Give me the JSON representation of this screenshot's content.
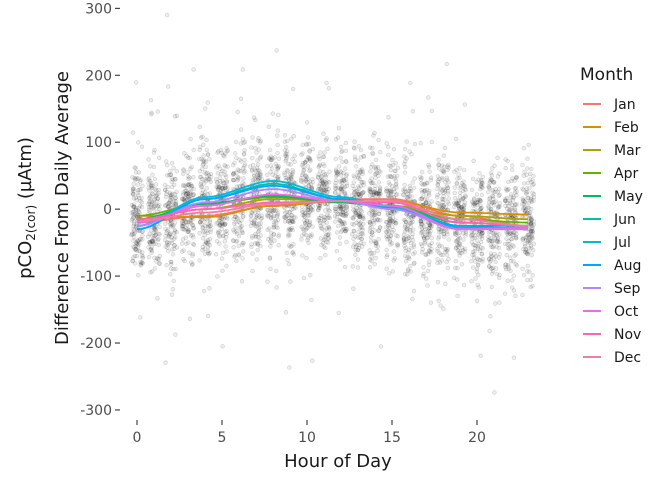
{
  "chart_data": {
    "type": "scatter",
    "xlabel": "Hour of Day",
    "ylabel_line1_main": "pCO",
    "ylabel_line1_sub1": "2(cor)",
    "ylabel_line1_unit": " (µAtm)",
    "ylabel_line2": "Difference From Daily Average",
    "xlim": [
      -1,
      24
    ],
    "ylim": [
      -315,
      305
    ],
    "x_ticks": [
      0,
      5,
      10,
      15,
      20
    ],
    "x_tick_labels": [
      "0",
      "5",
      "10",
      "15",
      "20"
    ],
    "y_ticks": [
      300,
      200,
      100,
      0,
      -100,
      -200,
      -300
    ],
    "y_tick_labels": [
      "300",
      "200",
      "100",
      "0",
      "-100",
      "-200",
      "-300"
    ],
    "grid": false,
    "legend": {
      "title": "Month",
      "position": "right"
    },
    "point_color": "#000000",
    "points_per_hour": 140,
    "series": [
      {
        "name": "Jan",
        "color": "#F8766D",
        "x": [
          0,
          4,
          8,
          12,
          15,
          19,
          23
        ],
        "values": [
          -20,
          -10,
          5,
          15,
          15,
          -10,
          -25
        ]
      },
      {
        "name": "Feb",
        "color": "#DB8E00",
        "x": [
          0,
          4,
          8,
          12,
          15,
          19,
          23
        ],
        "values": [
          -10,
          -12,
          5,
          12,
          12,
          -5,
          -8
        ]
      },
      {
        "name": "Mar",
        "color": "#AEA200",
        "x": [
          0,
          4,
          8,
          12,
          15,
          19,
          23
        ],
        "values": [
          -15,
          0,
          15,
          12,
          5,
          -10,
          -15
        ]
      },
      {
        "name": "Apr",
        "color": "#64B200",
        "x": [
          0,
          4,
          8,
          12,
          15,
          19,
          23
        ],
        "values": [
          -10,
          8,
          18,
          10,
          3,
          -15,
          -20
        ]
      },
      {
        "name": "May",
        "color": "#00BD5C",
        "x": [
          0,
          4,
          8,
          12,
          15,
          19,
          23
        ],
        "values": [
          -15,
          8,
          20,
          10,
          3,
          -20,
          -25
        ]
      },
      {
        "name": "Jun",
        "color": "#00C1A7",
        "x": [
          0,
          4,
          8,
          12,
          15,
          19,
          23
        ],
        "values": [
          -25,
          15,
          38,
          15,
          5,
          -25,
          -30
        ]
      },
      {
        "name": "Jul",
        "color": "#00BADE",
        "x": [
          0,
          4,
          8,
          12,
          15,
          19,
          23
        ],
        "values": [
          -25,
          18,
          42,
          18,
          3,
          -28,
          -28
        ]
      },
      {
        "name": "Aug",
        "color": "#00A6FF",
        "x": [
          0,
          4,
          8,
          12,
          15,
          19,
          23
        ],
        "values": [
          -30,
          15,
          35,
          15,
          0,
          -25,
          -25
        ]
      },
      {
        "name": "Sep",
        "color": "#B385FF",
        "x": [
          0,
          4,
          8,
          12,
          15,
          19,
          23
        ],
        "values": [
          -25,
          10,
          30,
          12,
          0,
          -30,
          -30
        ]
      },
      {
        "name": "Oct",
        "color": "#EF67EB",
        "x": [
          0,
          4,
          8,
          12,
          15,
          19,
          23
        ],
        "values": [
          -20,
          5,
          22,
          12,
          5,
          -30,
          -28
        ]
      },
      {
        "name": "Nov",
        "color": "#FF63B6",
        "x": [
          0,
          4,
          8,
          12,
          15,
          19,
          23
        ],
        "values": [
          -15,
          0,
          10,
          12,
          10,
          -20,
          -25
        ]
      },
      {
        "name": "Dec",
        "color": "#F07EA0",
        "x": [
          0,
          4,
          8,
          12,
          15,
          19,
          23
        ],
        "values": [
          -18,
          -5,
          8,
          12,
          12,
          -15,
          -25
        ]
      }
    ]
  }
}
